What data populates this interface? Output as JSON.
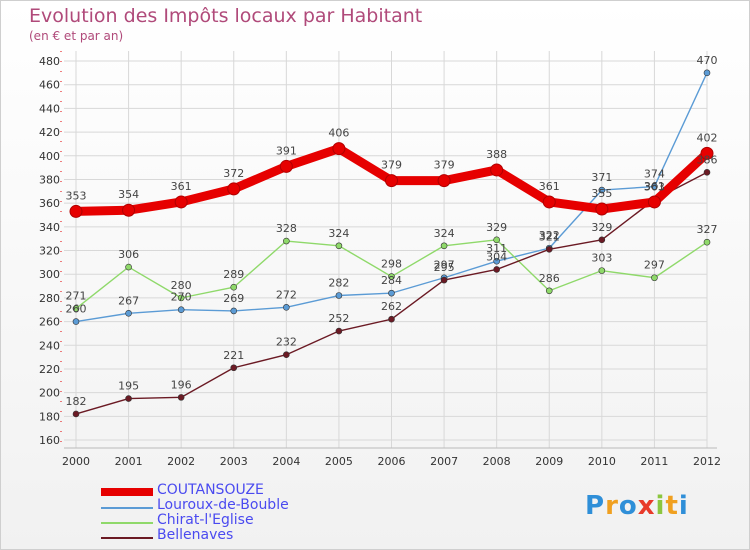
{
  "header": {
    "title": "Evolution des Impôts locaux par Habitant",
    "subtitle": "(en € et par an)"
  },
  "brand": {
    "name": "Proxiti",
    "letters": [
      {
        "ch": "P",
        "color": "#2f8fd8"
      },
      {
        "ch": "r",
        "color": "#f0a020"
      },
      {
        "ch": "o",
        "color": "#2f8fd8"
      },
      {
        "ch": "x",
        "color": "#e83a2a"
      },
      {
        "ch": "i",
        "color": "#8cc63f"
      },
      {
        "ch": "t",
        "color": "#f0a020"
      },
      {
        "ch": "i",
        "color": "#2f8fd8"
      }
    ]
  },
  "chart_data": {
    "type": "line",
    "title": "Evolution des Impôts locaux par Habitant",
    "subtitle": "(en € et par an)",
    "xlabel": "",
    "ylabel": "",
    "categories": [
      "2000",
      "2001",
      "2002",
      "2003",
      "2004",
      "2005",
      "2006",
      "2007",
      "2008",
      "2009",
      "2010",
      "2011",
      "2012"
    ],
    "ylim": [
      160,
      480
    ],
    "yticks": [
      160,
      180,
      200,
      220,
      240,
      260,
      280,
      300,
      320,
      340,
      360,
      380,
      400,
      420,
      440,
      460,
      480
    ],
    "grid": true,
    "legend_position": "bottom-left",
    "series": [
      {
        "name": "COUTANSOUZE",
        "color": "#e60000",
        "emphasis": true,
        "values": [
          353,
          354,
          361,
          372,
          391,
          406,
          379,
          379,
          388,
          361,
          355,
          361,
          402
        ],
        "labels": [
          "353",
          "354",
          "361",
          "372",
          "391",
          "406",
          "379",
          "379",
          "388",
          "361",
          "355",
          "361",
          "402"
        ]
      },
      {
        "name": "Louroux-de-Bouble",
        "color": "#5b9bd5",
        "values": [
          260,
          267,
          270,
          269,
          272,
          282,
          284,
          297,
          311,
          322,
          371,
          374,
          470
        ],
        "labels": [
          "260",
          "267",
          "270",
          "269",
          "272",
          "282",
          "284",
          "297",
          "311",
          "322",
          "371",
          "374",
          "470"
        ]
      },
      {
        "name": "Chirat-l'Eglise",
        "color": "#8fd96a",
        "values": [
          271,
          306,
          280,
          289,
          328,
          324,
          298,
          324,
          329,
          286,
          303,
          297,
          327
        ],
        "labels": [
          "271",
          "306",
          "280",
          "289",
          "328",
          "324",
          "298",
          "324",
          "329",
          "286",
          "303",
          "297",
          "327"
        ]
      },
      {
        "name": "Bellenaves",
        "color": "#6b1a24",
        "values": [
          182,
          195,
          196,
          221,
          232,
          252,
          262,
          295,
          304,
          321,
          329,
          363,
          386
        ],
        "labels": [
          "182",
          "195",
          "196",
          "221",
          "232",
          "252",
          "262",
          "295",
          "304",
          "321",
          "329",
          "363",
          "386"
        ]
      }
    ]
  }
}
